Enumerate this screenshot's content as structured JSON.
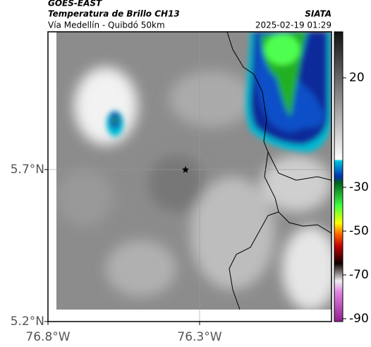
{
  "header": {
    "source": "GOES-EAST",
    "title": "Temperatura de Brillo CH13",
    "subtitle": "Vía Medellín - Quibdó 50km",
    "org": "SIATA",
    "datetime": "2025-02-19 01:29"
  },
  "map": {
    "xlim": [
      -76.8,
      -75.865
    ],
    "ylim": [
      5.2,
      6.153
    ],
    "xticks": [
      {
        "value": -76.8,
        "label": "76.8°W"
      },
      {
        "value": -76.3,
        "label": "76.3°W"
      }
    ],
    "yticks": [
      {
        "value": 5.2,
        "label": "5.2°N"
      },
      {
        "value": 5.7,
        "label": "5.7°N"
      }
    ]
  },
  "colorbar": {
    "clim": [
      -91.3,
      41
    ],
    "ticks": [
      20,
      -30,
      -50,
      -70,
      -90
    ]
  }
}
